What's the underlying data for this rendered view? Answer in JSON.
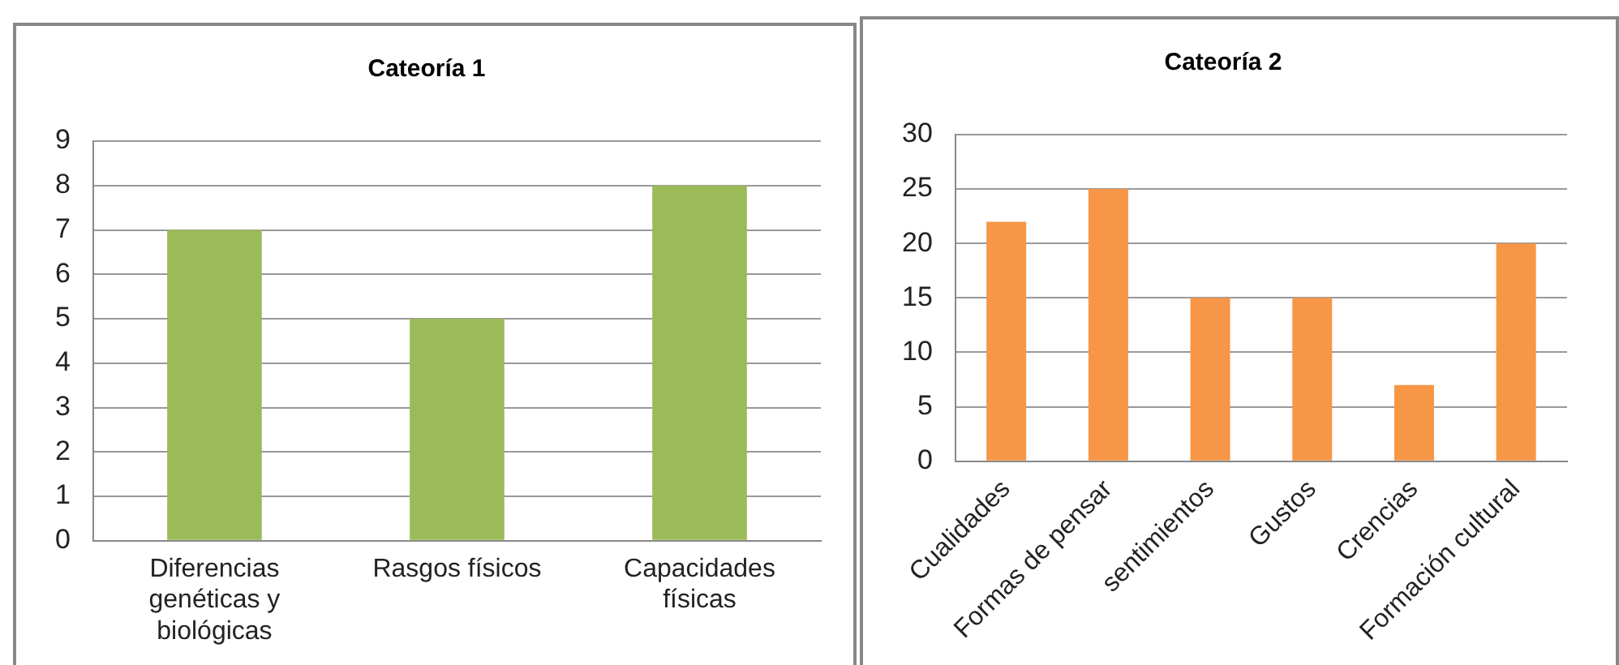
{
  "chart_data": [
    {
      "type": "bar",
      "title": "Cateoría 1",
      "categories": [
        "Diferencias genéticas y biológicas",
        "Rasgos físicos",
        "Capacidades físicas"
      ],
      "values": [
        7,
        5,
        8
      ],
      "color": "#9bbb59",
      "ylim": [
        0,
        9
      ],
      "yticks": [
        0,
        1,
        2,
        3,
        4,
        5,
        6,
        7,
        8,
        9
      ],
      "grid": "y",
      "legend": false
    },
    {
      "type": "bar",
      "title": "Cateoría 2",
      "categories": [
        "Cualidades",
        "Formas de pensar",
        "sentimientos",
        "Gustos",
        "Crencias",
        "Formación cultural"
      ],
      "values": [
        22,
        25,
        15,
        15,
        7,
        20
      ],
      "color": "#f79646",
      "ylim": [
        0,
        30
      ],
      "yticks": [
        0,
        5,
        10,
        15,
        20,
        25,
        30
      ],
      "grid": "y",
      "legend": false
    }
  ]
}
